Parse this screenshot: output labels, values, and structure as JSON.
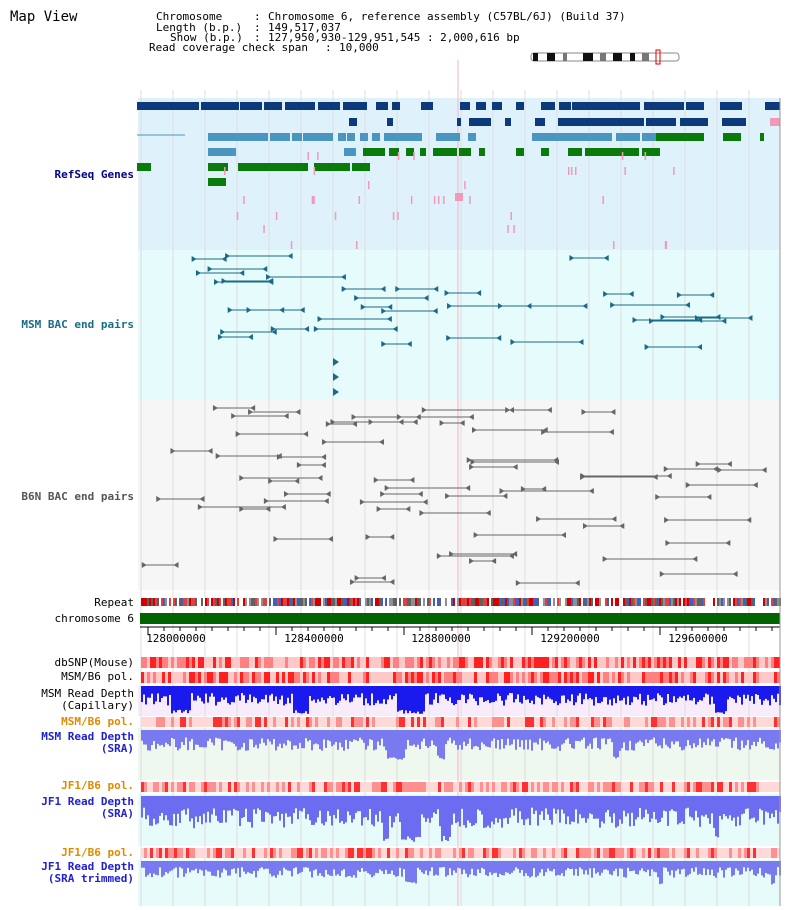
{
  "page": {
    "title": "Map View"
  },
  "header": {
    "chromosome_key": "Chromosome",
    "chromosome_value": "Chromosome 6, reference assembly (C57BL/6J) (Build 37)",
    "length_key": "Length (b.p.)",
    "length_value": "149,517,037",
    "show_key": "Show (b.p.)",
    "show_value": "127,950,930-129,951,545 : 2,000,616 bp",
    "span_key": "Read coverage check span",
    "span_value": "10,000"
  },
  "tracks": {
    "refseq": "RefSeq Genes",
    "msm_bac": "MSM BAC end pairs",
    "b6n_bac": "B6N BAC end pairs",
    "repeat": "Repeat",
    "chromosome": "chromosome 6",
    "dbsnp": "dbSNP(Mouse)",
    "msm_b6_pol": "MSM/B6 pol.",
    "msm_depth_cap_1": "MSM Read Depth",
    "msm_depth_cap_2": "(Capillary)",
    "msm_b6_pol_2": "MSM/B6 pol.",
    "msm_depth_sra_1": "MSM Read Depth",
    "msm_depth_sra_2": "(SRA)",
    "jf1_b6_pol": "JF1/B6 pol.",
    "jf1_depth_sra_1": "JF1 Read Depth",
    "jf1_depth_sra_2": "(SRA)",
    "jf1_b6_pol_2": "JF1/B6 pol.",
    "jf1_depth_trim_1": "JF1 Read Depth",
    "jf1_depth_trim_2": "(SRA trimmed)"
  },
  "axis": {
    "ticks": [
      "128000000",
      "128400000",
      "128800000",
      "129200000",
      "129600000"
    ]
  },
  "colors": {
    "refseq_label": "#00008b",
    "msm_label": "#1a6b8a",
    "b6n_label": "#555555",
    "pol_label": "#e08a00",
    "depth_label": "#2020d0",
    "refseq_bg": "#dff1fb",
    "msm_bg": "#e6fbfb",
    "b6n_bg": "#f6f6f6",
    "chromosome_bar": "#006400"
  }
}
